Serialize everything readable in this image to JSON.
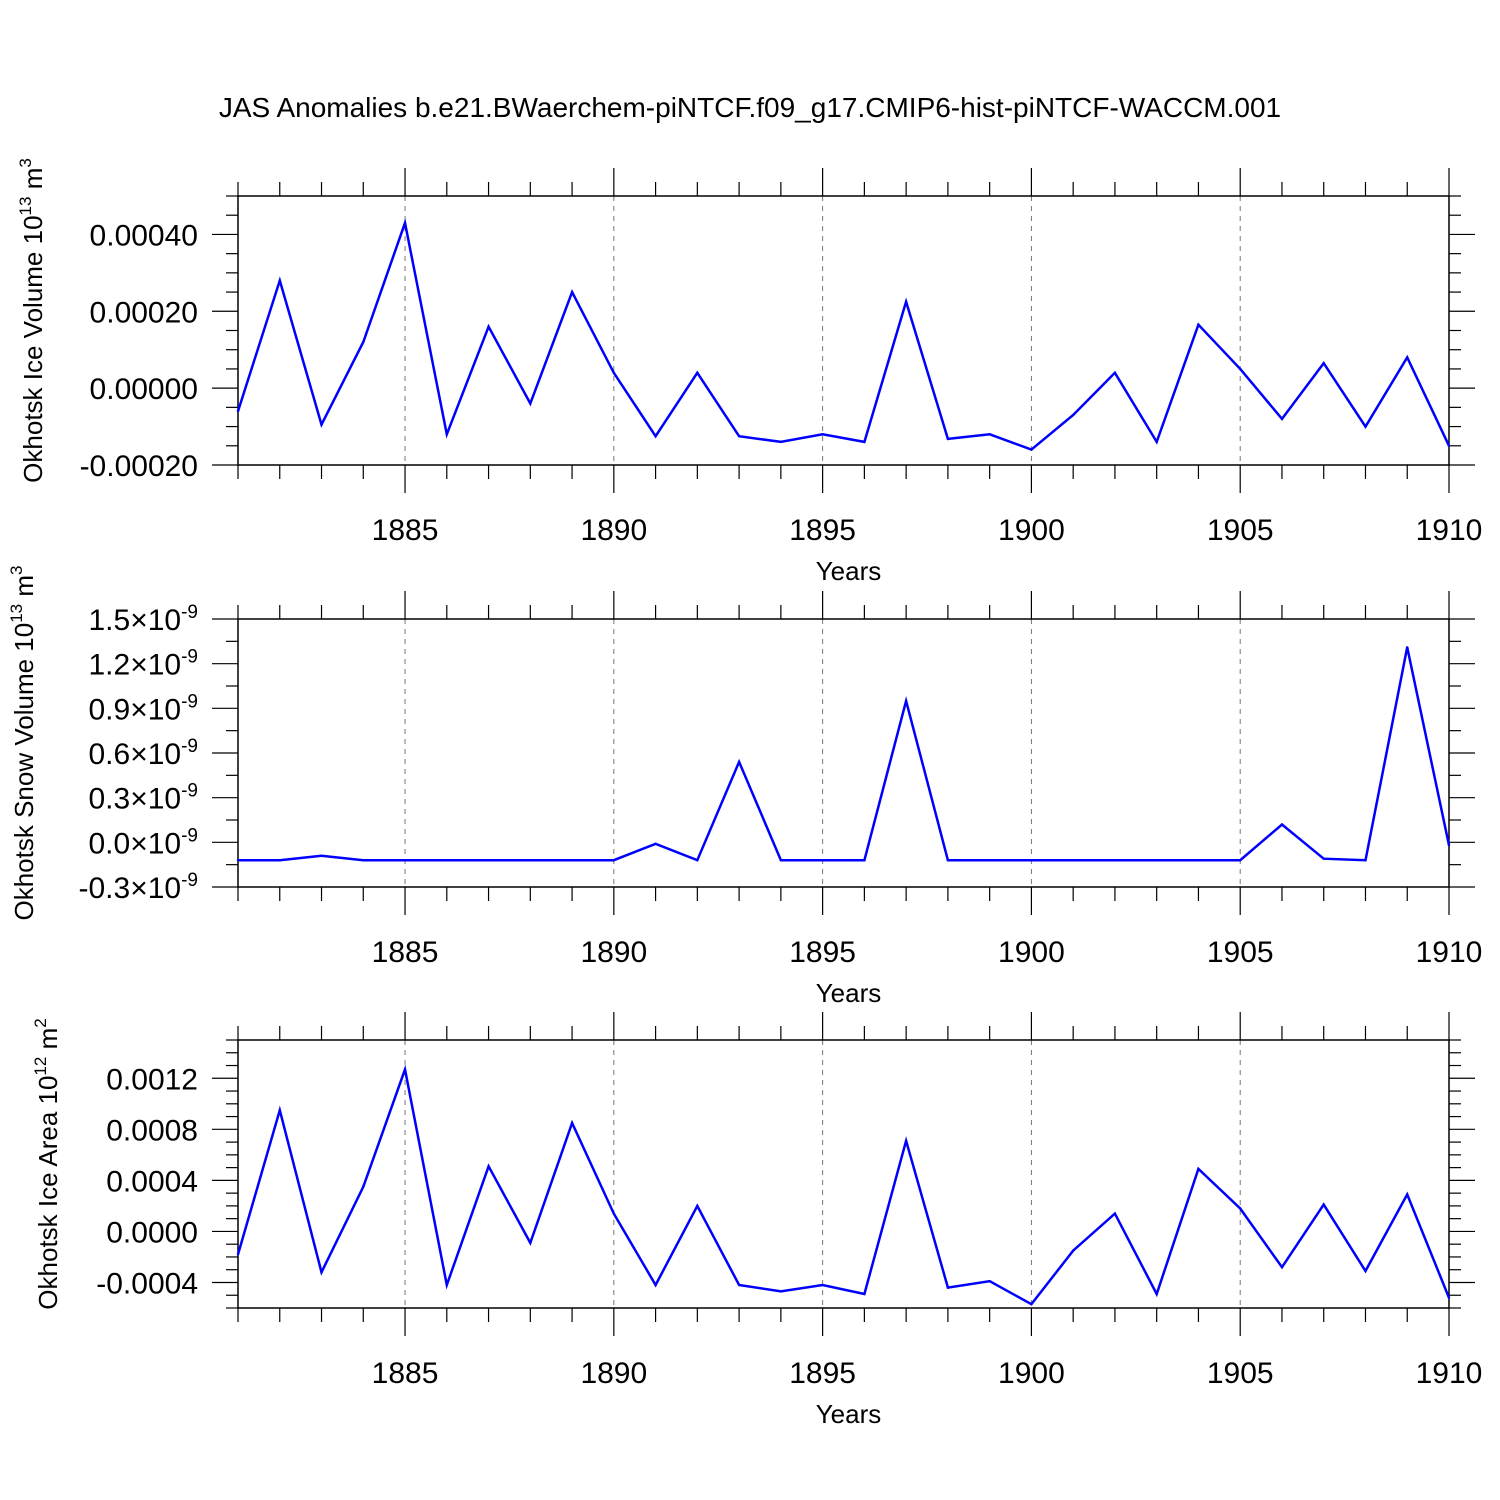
{
  "title": "JAS Anomalies b.e21.BWaerchem-piNTCF.f09_g17.CMIP6-hist-piNTCF-WACCM.001",
  "colors": {
    "line": "#0000ff",
    "axis": "#000000",
    "grid": "#777777"
  },
  "chart_data": [
    {
      "type": "line",
      "ylabel_main": "Okhotsk Ice Volume 10",
      "ylabel_exp": "13",
      "ylabel_unit": " m",
      "ylabel_unit_exp": "3",
      "xlabel": "Years",
      "xlim": [
        1881,
        1910
      ],
      "ylim": [
        -0.0002,
        0.0005
      ],
      "yticks": [
        {
          "v": -0.0002,
          "label": "-0.00020"
        },
        {
          "v": 0.0,
          "label": "0.00000"
        },
        {
          "v": 0.0002,
          "label": "0.00020"
        },
        {
          "v": 0.0004,
          "label": "0.00040"
        }
      ],
      "xticks": [
        {
          "v": 1885,
          "label": "1885"
        },
        {
          "v": 1890,
          "label": "1890"
        },
        {
          "v": 1895,
          "label": "1895"
        },
        {
          "v": 1900,
          "label": "1900"
        },
        {
          "v": 1905,
          "label": "1905"
        },
        {
          "v": 1910,
          "label": "1910"
        }
      ],
      "x": [
        1881,
        1882,
        1883,
        1884,
        1885,
        1886,
        1887,
        1888,
        1889,
        1890,
        1891,
        1892,
        1893,
        1894,
        1895,
        1896,
        1897,
        1898,
        1899,
        1900,
        1901,
        1902,
        1903,
        1904,
        1905,
        1906,
        1907,
        1908,
        1909,
        1910
      ],
      "values": [
        -6e-05,
        0.00028,
        -9.5e-05,
        0.00012,
        0.00043,
        -0.00012,
        0.00016,
        -4e-05,
        0.00025,
        4e-05,
        -0.000125,
        4e-05,
        -0.000125,
        -0.00014,
        -0.00012,
        -0.00014,
        0.000225,
        -0.000132,
        -0.00012,
        -0.00016,
        -7e-05,
        4e-05,
        -0.00014,
        0.000165,
        5e-05,
        -8e-05,
        6.5e-05,
        -0.0001,
        8e-05,
        -0.00015
      ]
    },
    {
      "type": "line",
      "ylabel_main": "Okhotsk Snow Volume 10",
      "ylabel_exp": "13",
      "ylabel_unit": " m",
      "ylabel_unit_exp": "3",
      "xlabel": "Years",
      "xlim": [
        1881,
        1910
      ],
      "ylim": [
        -0.3,
        1.5
      ],
      "yticks": [
        {
          "v": -0.3,
          "label": "-0.3×10",
          "exp": "-9"
        },
        {
          "v": 0.0,
          "label": "0.0×10",
          "exp": "-9"
        },
        {
          "v": 0.3,
          "label": "0.3×10",
          "exp": "-9"
        },
        {
          "v": 0.6,
          "label": "0.6×10",
          "exp": "-9"
        },
        {
          "v": 0.9,
          "label": "0.9×10",
          "exp": "-9"
        },
        {
          "v": 1.2,
          "label": "1.2×10",
          "exp": "-9"
        },
        {
          "v": 1.5,
          "label": "1.5×10",
          "exp": "-9"
        }
      ],
      "xticks": [
        {
          "v": 1885,
          "label": "1885"
        },
        {
          "v": 1890,
          "label": "1890"
        },
        {
          "v": 1895,
          "label": "1895"
        },
        {
          "v": 1900,
          "label": "1900"
        },
        {
          "v": 1905,
          "label": "1905"
        },
        {
          "v": 1910,
          "label": "1910"
        }
      ],
      "x": [
        1881,
        1882,
        1883,
        1884,
        1885,
        1886,
        1887,
        1888,
        1889,
        1890,
        1891,
        1892,
        1893,
        1894,
        1895,
        1896,
        1897,
        1898,
        1899,
        1900,
        1901,
        1902,
        1903,
        1904,
        1905,
        1906,
        1907,
        1908,
        1909,
        1910
      ],
      "values": [
        -0.12,
        -0.12,
        -0.09,
        -0.12,
        -0.12,
        -0.12,
        -0.12,
        -0.12,
        -0.12,
        -0.12,
        -0.01,
        -0.12,
        0.54,
        -0.12,
        -0.12,
        -0.12,
        0.95,
        -0.12,
        -0.12,
        -0.12,
        -0.12,
        -0.12,
        -0.12,
        -0.12,
        -0.12,
        0.12,
        -0.11,
        -0.12,
        1.31,
        -0.02
      ]
    },
    {
      "type": "line",
      "ylabel_main": "Okhotsk Ice Area 10",
      "ylabel_exp": "12",
      "ylabel_unit": " m",
      "ylabel_unit_exp": "2",
      "xlabel": "Years",
      "xlim": [
        1881,
        1910
      ],
      "ylim": [
        -0.0006,
        0.0015
      ],
      "yticks": [
        {
          "v": -0.0004,
          "label": "-0.0004"
        },
        {
          "v": 0.0,
          "label": "0.0000"
        },
        {
          "v": 0.0004,
          "label": "0.0004"
        },
        {
          "v": 0.0008,
          "label": "0.0008"
        },
        {
          "v": 0.0012,
          "label": "0.0012"
        }
      ],
      "xticks": [
        {
          "v": 1885,
          "label": "1885"
        },
        {
          "v": 1890,
          "label": "1890"
        },
        {
          "v": 1895,
          "label": "1895"
        },
        {
          "v": 1900,
          "label": "1900"
        },
        {
          "v": 1905,
          "label": "1905"
        },
        {
          "v": 1910,
          "label": "1910"
        }
      ],
      "x": [
        1881,
        1882,
        1883,
        1884,
        1885,
        1886,
        1887,
        1888,
        1889,
        1890,
        1891,
        1892,
        1893,
        1894,
        1895,
        1896,
        1897,
        1898,
        1899,
        1900,
        1901,
        1902,
        1903,
        1904,
        1905,
        1906,
        1907,
        1908,
        1909,
        1910
      ],
      "values": [
        -0.00018,
        0.00095,
        -0.00032,
        0.00035,
        0.00127,
        -0.00042,
        0.00051,
        -9e-05,
        0.00085,
        0.00014,
        -0.00042,
        0.0002,
        -0.00042,
        -0.00047,
        -0.00042,
        -0.00049,
        0.00071,
        -0.00044,
        -0.00039,
        -0.00057,
        -0.00015,
        0.00014,
        -0.00049,
        0.00049,
        0.00018,
        -0.00028,
        0.00021,
        -0.00031,
        0.00029,
        -0.00052
      ]
    }
  ]
}
